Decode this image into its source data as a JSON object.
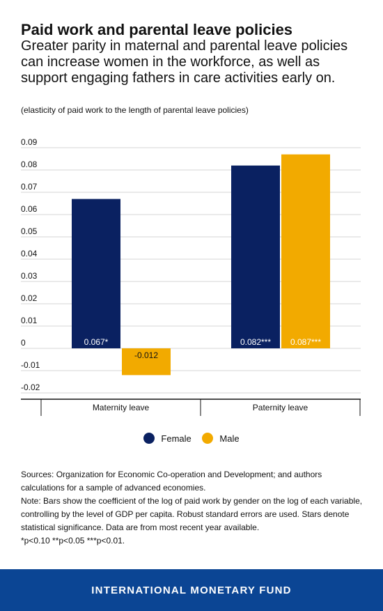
{
  "header": {
    "title": "Paid work and parental leave policies",
    "subtitle": "Greater parity in maternal and parental leave policies can increase women in the workforce, as well as support engaging fathers in care activities early on.",
    "units_note": "(elasticity of paid work to the length of parental leave policies)"
  },
  "colors": {
    "female": "#0a2161",
    "male": "#f2aa00",
    "grid": "#d4d4d4",
    "footer_bg": "#0b4594"
  },
  "chart_data": {
    "type": "bar",
    "categories": [
      "Maternity leave",
      "Paternity leave"
    ],
    "series": [
      {
        "name": "Female",
        "values": [
          0.067,
          0.082
        ],
        "labels": [
          "0.067*",
          "0.082***"
        ]
      },
      {
        "name": "Male",
        "values": [
          -0.012,
          0.087
        ],
        "labels": [
          "-0.012",
          "0.087***"
        ]
      }
    ],
    "yticks": [
      "0.09",
      "0.08",
      "0.07",
      "0.06",
      "0.05",
      "0.04",
      "0.03",
      "0.02",
      "0.01",
      "0",
      "-0.01",
      "-0.02"
    ],
    "ylim": [
      -0.02,
      0.09
    ],
    "grid": true,
    "legend_position": "bottom"
  },
  "legend": {
    "female": "Female",
    "male": "Male"
  },
  "sources": {
    "line1": "Sources: Organization for Economic Co-operation and Development; and authors calculations for a sample of advanced economies.",
    "line2": "Note: Bars show the coefficient of the log of paid work by gender on the log of each variable, controlling by the level of GDP per capita. Robust standard errors are used. Stars denote statistical significance. Data are from most recent year available.",
    "line3": "*p<0.10 **p<0.05 ***p<0.01."
  },
  "footer": {
    "label": "INTERNATIONAL MONETARY FUND"
  }
}
